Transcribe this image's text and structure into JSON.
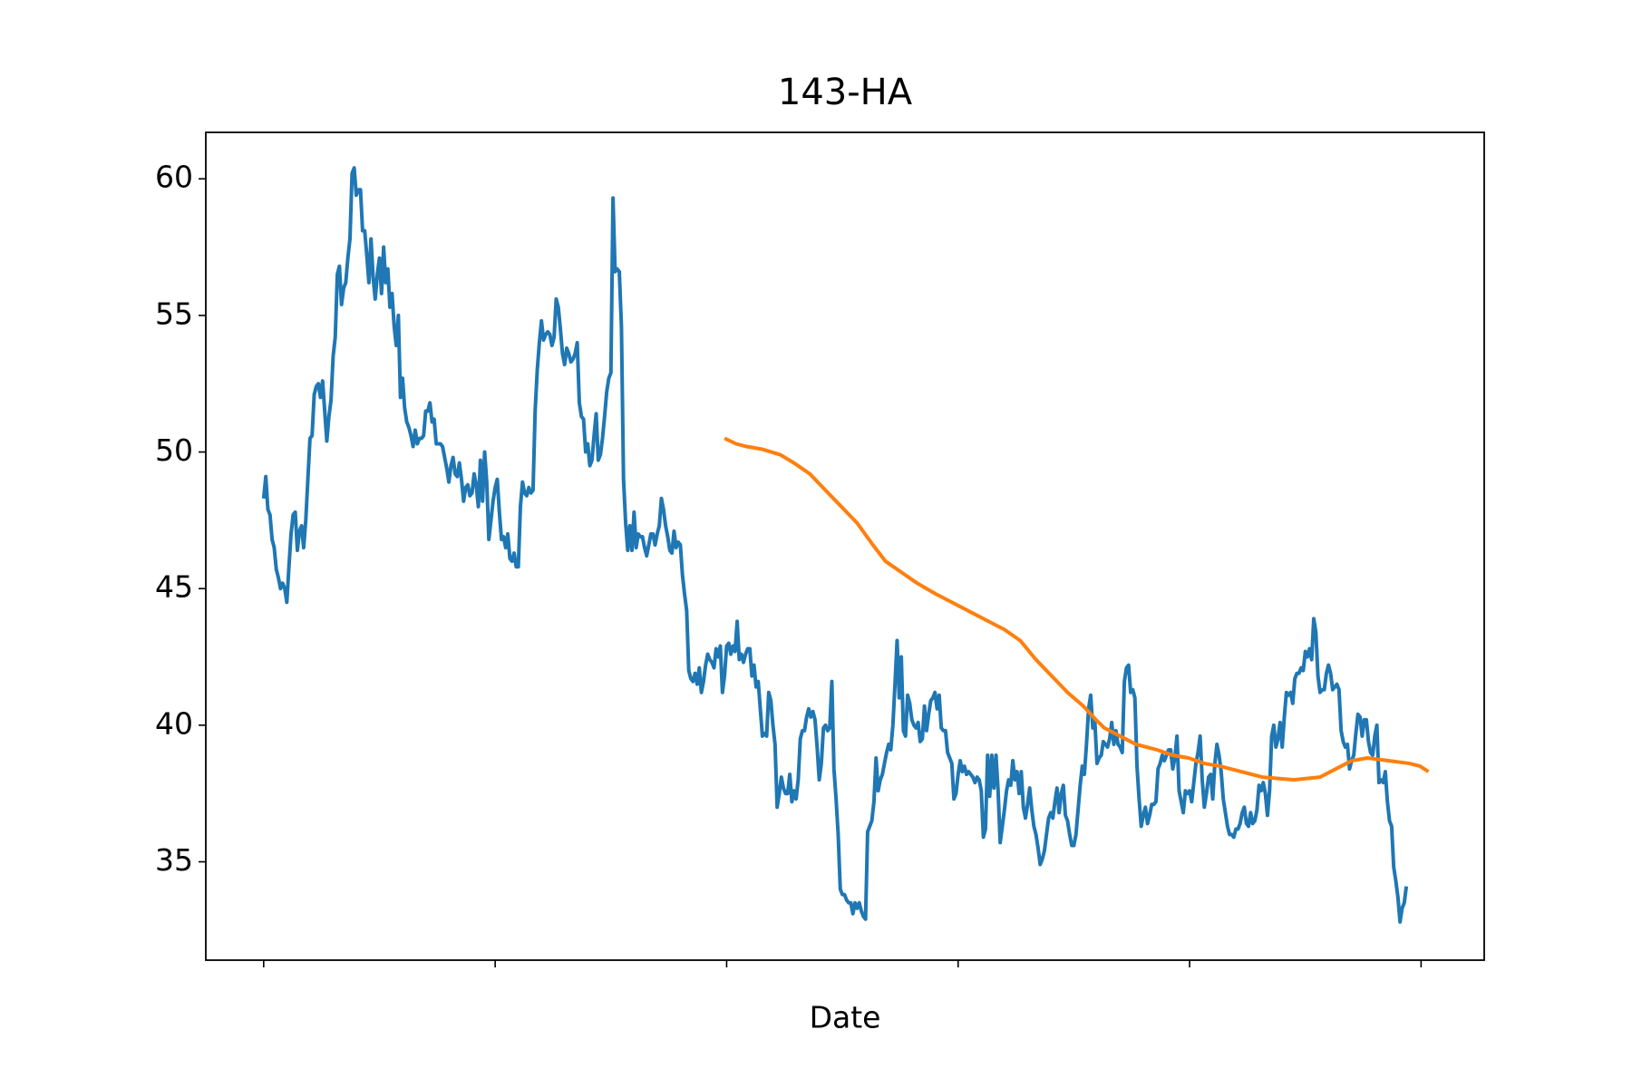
{
  "chart_data": {
    "type": "line",
    "title": "143-HA",
    "x_label": "Date",
    "xlim": [
      -27.5,
      580
    ],
    "xticks": [
      0,
      110,
      220,
      330,
      440,
      550
    ],
    "ylim": [
      31.4,
      61.7
    ],
    "yticks": [
      35,
      40,
      45,
      50,
      55,
      60
    ],
    "series": [
      {
        "color": "#1f77b4",
        "values": [
          48.3,
          49.1,
          47.9,
          47.7,
          46.8,
          46.5,
          45.7,
          45.4,
          45.0,
          45.2,
          45.0,
          44.5,
          45.8,
          47.0,
          47.7,
          47.8,
          46.4,
          47.1,
          47.3,
          46.5,
          47.5,
          49.0,
          50.5,
          50.6,
          52.1,
          52.4,
          52.5,
          52.0,
          52.6,
          51.5,
          50.4,
          51.3,
          51.9,
          53.5,
          54.2,
          56.5,
          56.8,
          55.4,
          56.0,
          56.2,
          57.1,
          57.8,
          60.2,
          60.4,
          59.4,
          59.6,
          59.6,
          58.1,
          58.1,
          57.2,
          56.2,
          57.8,
          56.4,
          55.6,
          56.5,
          57.1,
          55.8,
          57.5,
          56.2,
          56.7,
          55.3,
          55.8,
          54.6,
          53.9,
          55.0,
          52.0,
          52.7,
          51.6,
          51.1,
          50.9,
          50.6,
          50.2,
          50.8,
          50.3,
          50.5,
          50.5,
          50.6,
          51.5,
          51.5,
          51.8,
          51.1,
          51.2,
          50.3,
          50.3,
          50.3,
          50.2,
          49.8,
          49.4,
          48.9,
          49.5,
          49.8,
          49.2,
          49.1,
          49.6,
          49.0,
          48.2,
          48.7,
          48.8,
          48.4,
          48.5,
          49.2,
          48.8,
          48.0,
          49.7,
          48.2,
          50.0,
          48.9,
          46.8,
          47.5,
          48.2,
          48.7,
          49.0,
          47.8,
          46.8,
          46.9,
          46.5,
          47.0,
          46.1,
          46.0,
          46.3,
          45.8,
          45.8,
          48.0,
          48.9,
          48.5,
          48.4,
          48.7,
          48.5,
          48.6,
          51.5,
          53.0,
          54.0,
          54.8,
          54.1,
          54.3,
          54.4,
          54.3,
          53.9,
          54.2,
          55.6,
          55.3,
          54.5,
          53.6,
          53.2,
          53.8,
          53.6,
          53.3,
          53.4,
          53.6,
          54.0,
          51.8,
          51.3,
          51.2,
          50.0,
          50.3,
          49.5,
          49.7,
          50.6,
          51.4,
          49.7,
          49.9,
          50.5,
          51.3,
          52.2,
          52.7,
          52.9,
          59.3,
          56.6,
          56.7,
          56.6,
          54.6,
          49.0,
          47.4,
          46.4,
          47.3,
          46.4,
          47.8,
          46.5,
          47.0,
          46.9,
          46.9,
          46.5,
          46.2,
          46.6,
          47.0,
          47.0,
          46.6,
          47.0,
          47.3,
          48.3,
          47.9,
          47.3,
          46.9,
          46.4,
          46.3,
          47.1,
          46.5,
          46.7,
          46.6,
          45.5,
          44.8,
          44.2,
          42.0,
          41.7,
          41.6,
          41.9,
          41.5,
          42.1,
          41.2,
          41.6,
          42.2,
          42.6,
          42.4,
          42.3,
          42.1,
          42.8,
          42.5,
          42.9,
          41.2,
          41.8,
          42.9,
          43.0,
          42.6,
          42.9,
          42.7,
          43.8,
          42.4,
          42.6,
          42.3,
          42.6,
          42.8,
          42.8,
          41.8,
          42.2,
          41.4,
          41.6,
          40.6,
          39.6,
          39.7,
          39.6,
          41.2,
          40.9,
          40.0,
          39.3,
          37.0,
          37.5,
          38.1,
          37.7,
          37.5,
          37.5,
          38.2,
          37.2,
          37.6,
          37.3,
          38.0,
          39.5,
          39.8,
          39.8,
          40.3,
          40.6,
          40.3,
          40.5,
          40.2,
          39.2,
          38.0,
          38.6,
          39.9,
          40.0,
          39.8,
          39.9,
          41.6,
          38.4,
          37.3,
          36.0,
          34.0,
          33.8,
          33.8,
          33.6,
          33.5,
          33.5,
          33.1,
          33.5,
          33.3,
          33.5,
          33.2,
          33.0,
          32.9,
          36.1,
          36.3,
          36.5,
          37.2,
          38.8,
          37.6,
          38.0,
          38.2,
          38.6,
          39.0,
          39.3,
          39.1,
          40.0,
          41.5,
          43.1,
          41.0,
          42.5,
          39.8,
          39.6,
          41.1,
          40.8,
          40.2,
          40.0,
          39.9,
          40.1,
          39.4,
          39.5,
          40.7,
          39.8,
          40.4,
          40.9,
          41.0,
          41.2,
          40.6,
          41.1,
          39.9,
          39.8,
          39.8,
          39.0,
          38.8,
          38.6,
          37.3,
          37.5,
          38.2,
          38.7,
          38.3,
          38.5,
          38.2,
          38.3,
          38.2,
          38.1,
          37.9,
          38.1,
          38.0,
          37.6,
          35.9,
          36.2,
          38.9,
          37.4,
          38.9,
          37.7,
          38.9,
          37.6,
          35.7,
          36.3,
          36.9,
          37.6,
          38.0,
          37.8,
          38.7,
          38.0,
          38.3,
          37.5,
          38.3,
          37.0,
          36.6,
          37.1,
          37.7,
          36.9,
          36.3,
          36.0,
          35.5,
          34.9,
          35.1,
          35.4,
          36.0,
          36.6,
          36.8,
          36.6,
          37.2,
          37.7,
          36.8,
          37.5,
          37.8,
          36.7,
          36.5,
          36.0,
          35.6,
          35.6,
          36.0,
          36.9,
          37.8,
          38.5,
          38.2,
          39.3,
          40.6,
          41.1,
          39.9,
          40.1,
          38.6,
          38.8,
          38.9,
          39.4,
          39.3,
          39.2,
          39.5,
          40.1,
          39.3,
          39.8,
          39.3,
          39.2,
          39.0,
          41.6,
          42.1,
          42.2,
          41.2,
          41.3,
          41.0,
          38.5,
          37.3,
          36.3,
          36.7,
          37.0,
          36.4,
          36.7,
          37.1,
          37.1,
          37.2,
          38.4,
          38.6,
          38.9,
          38.7,
          38.9,
          39.1,
          39.1,
          38.4,
          38.8,
          39.6,
          37.6,
          37.2,
          36.8,
          37.6,
          37.5,
          37.6,
          37.2,
          37.9,
          38.6,
          39.0,
          39.6,
          38.0,
          37.0,
          37.5,
          38.1,
          38.2,
          37.3,
          38.6,
          39.3,
          38.9,
          38.3,
          37.3,
          36.8,
          36.3,
          36.0,
          36.0,
          35.9,
          36.2,
          36.2,
          36.4,
          36.8,
          37.0,
          36.4,
          36.3,
          36.8,
          36.4,
          36.5,
          36.9,
          37.8,
          37.6,
          37.9,
          37.5,
          36.7,
          37.6,
          39.6,
          40.0,
          39.2,
          39.5,
          40.1,
          39.2,
          40.3,
          41.2,
          41.1,
          41.2,
          40.8,
          41.7,
          41.9,
          41.9,
          42.1,
          42.0,
          42.7,
          42.5,
          42.8,
          42.4,
          43.9,
          43.4,
          41.8,
          41.2,
          41.3,
          41.3,
          41.9,
          42.2,
          41.9,
          41.3,
          41.4,
          41.5,
          41.3,
          39.8,
          39.4,
          39.2,
          39.3,
          38.4,
          38.7,
          38.9,
          39.7,
          40.4,
          40.3,
          39.6,
          40.2,
          40.2,
          39.4,
          39.0,
          38.9,
          39.6,
          40.0,
          37.9,
          38.0,
          37.9,
          38.3,
          37.2,
          36.5,
          36.3,
          34.8,
          34.3,
          33.7,
          32.8,
          33.3,
          33.5,
          34.1
        ]
      },
      {
        "color": "#ff7f0e",
        "x": [
          219,
          224.5,
          229.5,
          237,
          245.5,
          252,
          259.5,
          267,
          274.5,
          282,
          289.5,
          295.5,
          303,
          310.5,
          319.5,
          327,
          337,
          344.5,
          352,
          359.5,
          367,
          374.5,
          382,
          389.5,
          395.5,
          399.5,
          407,
          414.5,
          424.5,
          432,
          439.5,
          447,
          454.5,
          464.5,
          474.5,
          489.5,
          502,
          509.5,
          517,
          524.5,
          534.5,
          544.5,
          549.5,
          553.5
        ],
        "values": [
          50.5,
          50.3,
          50.2,
          50.1,
          49.9,
          49.6,
          49.2,
          48.6,
          48.0,
          47.4,
          46.6,
          46.0,
          45.6,
          45.2,
          44.8,
          44.5,
          44.1,
          43.8,
          43.5,
          43.1,
          42.4,
          41.8,
          41.2,
          40.7,
          40.2,
          39.9,
          39.6,
          39.3,
          39.1,
          38.9,
          38.8,
          38.6,
          38.5,
          38.3,
          38.1,
          38.0,
          38.1,
          38.4,
          38.7,
          38.8,
          38.7,
          38.6,
          38.5,
          38.3
        ]
      }
    ]
  }
}
